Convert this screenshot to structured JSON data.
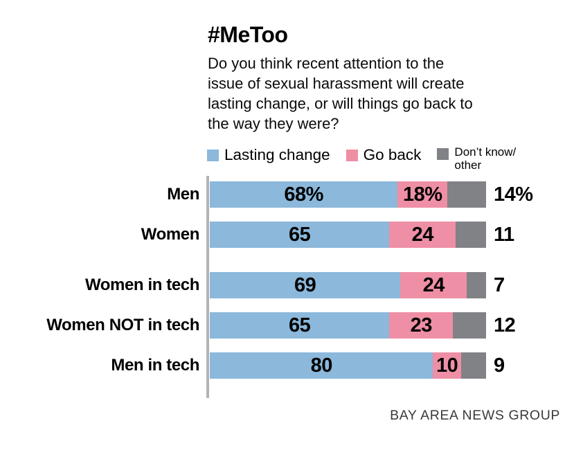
{
  "header": {
    "title": "#MeToo",
    "subtitle_lines": [
      "Do you think recent attention to the",
      "issue of sexual harassment will create",
      "lasting change, or will things go back to",
      "the way they were?"
    ]
  },
  "legend": {
    "items": [
      {
        "name": "lasting-change",
        "label_lines": [
          "Lasting change"
        ],
        "color": "#8bb8db"
      },
      {
        "name": "go-back",
        "label_lines": [
          "Go back"
        ],
        "color": "#ee8fa5"
      },
      {
        "name": "dont-know-other",
        "label_lines": [
          "Don’t know/",
          "other"
        ],
        "color": "#808285"
      }
    ]
  },
  "chart_data": {
    "type": "bar",
    "stacked": true,
    "orientation": "horizontal",
    "title": "#MeToo",
    "subtitle": "Do you think recent attention to the issue of sexual harassment will create lasting change, or will things go back to the way they were?",
    "xlim": [
      0,
      100
    ],
    "grid": false,
    "legend_position": "top",
    "colors": {
      "lasting_change": "#8bb8db",
      "go_back": "#ee8fa5",
      "dont_know_other": "#808285",
      "axis_line": "#b3b3b3"
    },
    "categories": [
      "Men",
      "Women",
      "Women in tech",
      "Women NOT in tech",
      "Men in tech"
    ],
    "series": [
      {
        "name": "Lasting change",
        "color": "#8bb8db",
        "values": [
          68,
          65,
          69,
          65,
          80
        ]
      },
      {
        "name": "Go back",
        "color": "#ee8fa5",
        "values": [
          18,
          24,
          24,
          23,
          10
        ]
      },
      {
        "name": "Don’t know/other",
        "color": "#808285",
        "values": [
          14,
          11,
          7,
          12,
          9
        ]
      }
    ],
    "rows": [
      {
        "category": "Men",
        "values": [
          68,
          18,
          14
        ],
        "display_labels": [
          "68%",
          "18%",
          "14%"
        ],
        "group_break_before": false
      },
      {
        "category": "Women",
        "values": [
          65,
          24,
          11
        ],
        "display_labels": [
          "65",
          "24",
          "11"
        ],
        "group_break_before": false
      },
      {
        "category": "Women in tech",
        "values": [
          69,
          24,
          7
        ],
        "display_labels": [
          "69",
          "24",
          "7"
        ],
        "group_break_before": true
      },
      {
        "category": "Women NOT in tech",
        "values": [
          65,
          23,
          12
        ],
        "display_labels": [
          "65",
          "23",
          "12"
        ],
        "group_break_before": false
      },
      {
        "category": "Men in tech",
        "values": [
          80,
          10,
          9
        ],
        "display_labels": [
          "80",
          "10",
          "9"
        ],
        "group_break_before": false
      }
    ],
    "value_label_note": "first two segment values shown inside bars, third value shown outside right of bar",
    "source": "BAY AREA NEWS GROUP"
  },
  "footer": {
    "source": "BAY AREA NEWS GROUP"
  }
}
